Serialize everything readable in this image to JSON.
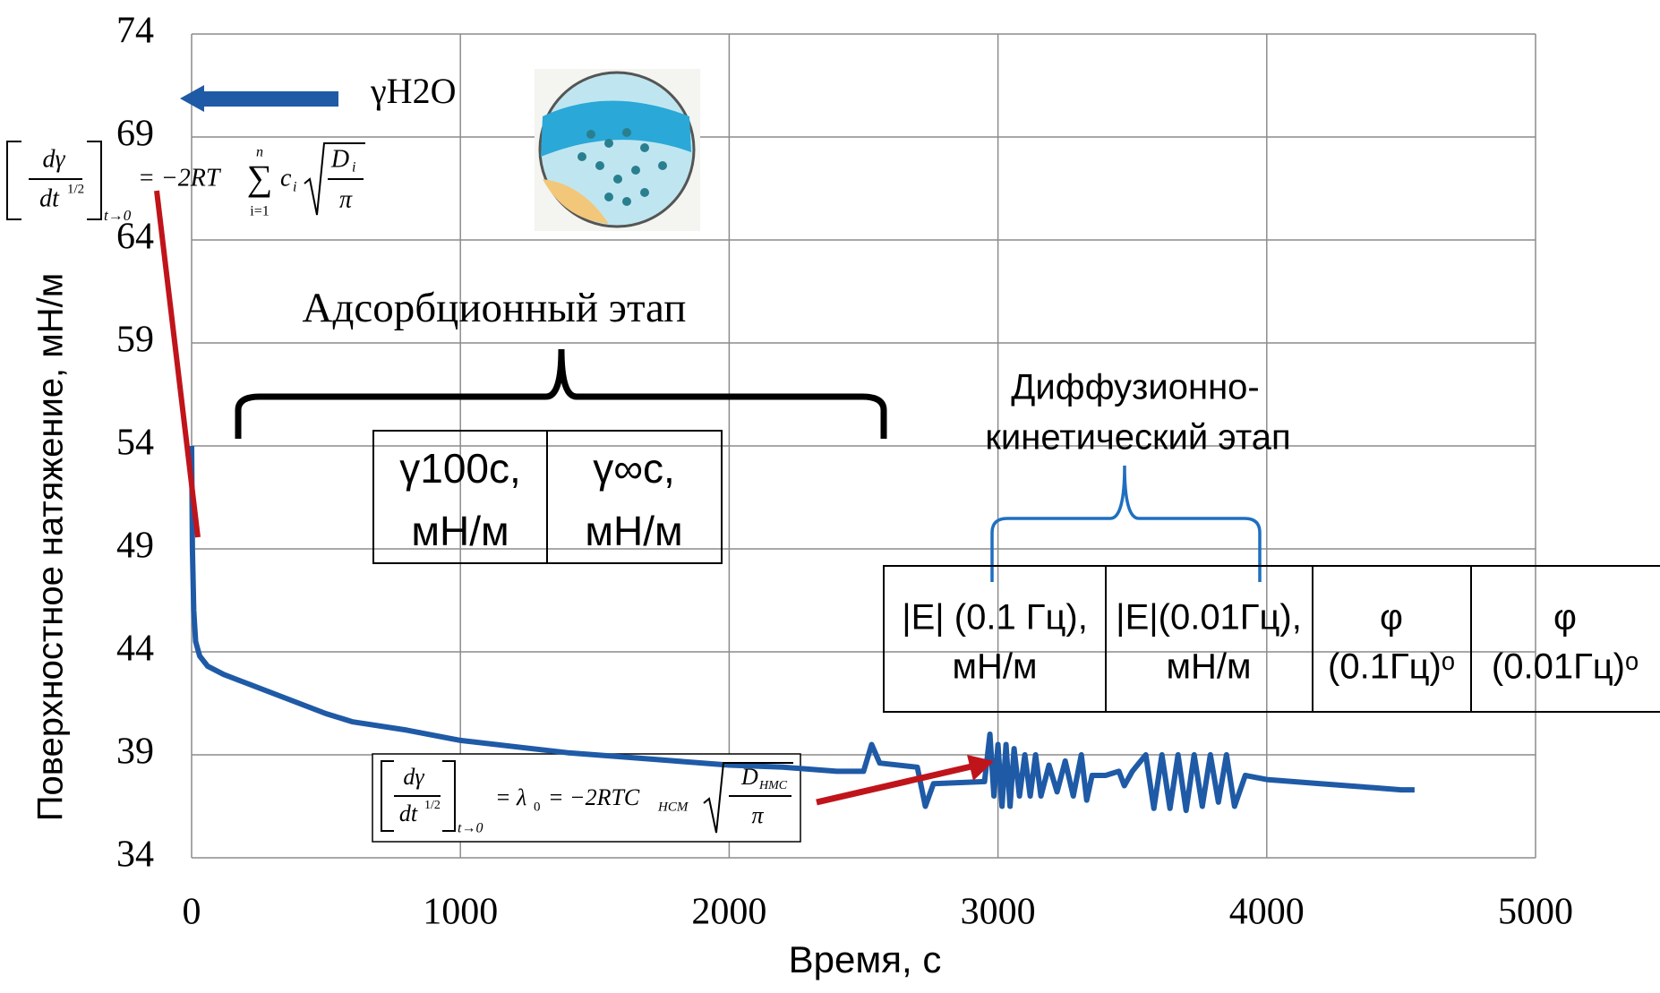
{
  "chart_data": {
    "type": "line",
    "ylabel": "Поверхностное натяжение, мН/м",
    "xlabel": "Время, с",
    "xlim": [
      0,
      5000
    ],
    "xticks": [
      0,
      1000,
      2000,
      3000,
      4000,
      5000
    ],
    "ylim": [
      34,
      74
    ],
    "yticks": [
      34,
      39,
      44,
      49,
      54,
      59,
      64,
      69,
      74
    ],
    "grid": true,
    "color": "#1f5aa6",
    "x": [
      0,
      3,
      8,
      15,
      30,
      60,
      120,
      200,
      300,
      400,
      500,
      600,
      800,
      1000,
      1200,
      1400,
      1600,
      1800,
      2000,
      2200,
      2400,
      2500,
      2530,
      2560,
      2700,
      2730,
      2760,
      2950,
      2970,
      2985,
      3000,
      3015,
      3030,
      3045,
      3060,
      3080,
      3100,
      3120,
      3140,
      3160,
      3190,
      3220,
      3250,
      3280,
      3310,
      3330,
      3350,
      3400,
      3450,
      3470,
      3500,
      3550,
      3580,
      3610,
      3640,
      3670,
      3700,
      3730,
      3760,
      3790,
      3820,
      3850,
      3880,
      3920,
      4000,
      4200,
      4400,
      4500,
      4550
    ],
    "values": [
      54,
      49,
      46,
      44.5,
      43.8,
      43.3,
      42.9,
      42.5,
      42,
      41.5,
      41,
      40.6,
      40.2,
      39.7,
      39.4,
      39.1,
      38.9,
      38.7,
      38.5,
      38.4,
      38.2,
      38.2,
      39.5,
      38.6,
      38.4,
      36.5,
      37.6,
      37.7,
      40,
      37,
      39.5,
      36.5,
      39.5,
      36.5,
      39.3,
      37,
      39,
      37,
      39,
      37,
      38.5,
      37.2,
      38.7,
      37,
      39,
      36.8,
      38,
      38,
      38.2,
      37.5,
      38.2,
      39,
      36.4,
      39,
      36.4,
      39,
      36.3,
      39,
      36.5,
      39,
      36.7,
      39,
      36.5,
      38,
      37.8,
      37.6,
      37.4,
      37.3,
      37.3
    ],
    "annotations": {
      "water": "γH2O",
      "adsorption_stage": "Адсорбционный этап",
      "diffusion_stage": [
        "Диффузионно-",
        "кинетический этап"
      ],
      "formula1": {
        "num": "dγ",
        "den": "dt",
        "exp": "1/2",
        "sub": "t→0",
        "rhs": "= −2RT",
        "sum": "∑",
        "sum_top": "n",
        "sum_bottom": "i=1",
        "c": "c",
        "c_sub": "i",
        "root_num": "D",
        "root_num_sub": "i",
        "root_den": "π"
      },
      "formula2": {
        "num": "dγ",
        "den": "dt",
        "exp": "1/2",
        "sub": "t→0",
        "eq1": "= λ",
        "lambda_sub": "0",
        "eq2": "= −2RTC",
        "c_sub": "НСМ",
        "root_num": "D",
        "root_num_sub": "НМС",
        "root_den": "π"
      }
    },
    "tables": [
      {
        "cells": [
          [
            "γ100с,",
            "мН/м"
          ],
          [
            "γ∞с,",
            "мН/м"
          ]
        ]
      },
      {
        "cells": [
          [
            "|E| (0.1 Гц),",
            "мН/м"
          ],
          [
            "|E|(0.01Гц),",
            "мН/м"
          ],
          [
            "φ",
            "(0.1Гц)ᵒ"
          ],
          [
            "φ",
            "(0.01Гц)ᵒ"
          ]
        ]
      }
    ]
  }
}
